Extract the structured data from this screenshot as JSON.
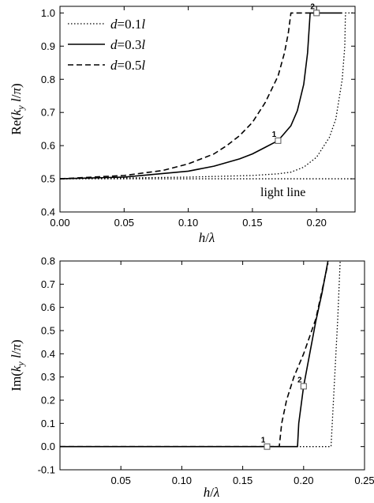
{
  "chart_data": [
    {
      "type": "line",
      "xlabel": "h/λ",
      "ylabel": "Re(k_y l/π)",
      "xlim": [
        0,
        0.23
      ],
      "ylim": [
        0.4,
        1.02
      ],
      "xticks": [
        "0.00",
        "0.05",
        "0.10",
        "0.15",
        "0.20"
      ],
      "yticks": [
        "0.4",
        "0.5",
        "0.6",
        "0.7",
        "0.8",
        "0.9",
        "1.0"
      ],
      "legend_position": "top-left",
      "series": [
        {
          "name": "d=0.1l",
          "style": "dotted",
          "points": [
            [
              0,
              0.5
            ],
            [
              0.1,
              0.505
            ],
            [
              0.15,
              0.51
            ],
            [
              0.17,
              0.515
            ],
            [
              0.18,
              0.52
            ],
            [
              0.19,
              0.535
            ],
            [
              0.2,
              0.565
            ],
            [
              0.21,
              0.625
            ],
            [
              0.215,
              0.68
            ],
            [
              0.22,
              0.8
            ],
            [
              0.222,
              0.9
            ],
            [
              0.2225,
              1.0
            ],
            [
              0.23,
              1.0
            ]
          ]
        },
        {
          "name": "d=0.3l",
          "style": "solid",
          "points": [
            [
              0,
              0.5
            ],
            [
              0.05,
              0.505
            ],
            [
              0.1,
              0.523
            ],
            [
              0.12,
              0.538
            ],
            [
              0.14,
              0.56
            ],
            [
              0.15,
              0.575
            ],
            [
              0.16,
              0.595
            ],
            [
              0.17,
              0.615
            ],
            [
              0.18,
              0.66
            ],
            [
              0.185,
              0.705
            ],
            [
              0.19,
              0.785
            ],
            [
              0.193,
              0.88
            ],
            [
              0.195,
              1.0
            ],
            [
              0.2,
              1.0
            ],
            [
              0.22,
              1.0
            ]
          ]
        },
        {
          "name": "d=0.5l",
          "style": "dashed",
          "points": [
            [
              0,
              0.5
            ],
            [
              0.05,
              0.51
            ],
            [
              0.08,
              0.525
            ],
            [
              0.1,
              0.545
            ],
            [
              0.12,
              0.575
            ],
            [
              0.13,
              0.6
            ],
            [
              0.14,
              0.63
            ],
            [
              0.15,
              0.67
            ],
            [
              0.16,
              0.73
            ],
            [
              0.17,
              0.81
            ],
            [
              0.175,
              0.88
            ],
            [
              0.178,
              0.94
            ],
            [
              0.18,
              1.0
            ],
            [
              0.2,
              1.0
            ]
          ]
        },
        {
          "name": "light line",
          "style": "dotted",
          "points": [
            [
              0,
              0.5
            ],
            [
              0.228,
              0.5
            ]
          ]
        }
      ],
      "markers": [
        {
          "label": "1",
          "x": 0.17,
          "y": 0.615
        },
        {
          "label": "2",
          "x": 0.2,
          "y": 1.0
        }
      ],
      "annotations": [
        "light line"
      ],
      "legend": [
        "d=0.1l",
        "d=0.3l",
        "d=0.5l"
      ]
    },
    {
      "type": "line",
      "xlabel": "h/λ",
      "ylabel": "Im(k_y l/π)",
      "xlim": [
        0,
        0.25
      ],
      "ylim": [
        -0.1,
        0.8
      ],
      "xticks": [
        "0.05",
        "0.10",
        "0.15",
        "0.20",
        "0.25"
      ],
      "yticks": [
        "-0.1",
        "0.0",
        "0.1",
        "0.2",
        "0.3",
        "0.4",
        "0.5",
        "0.6",
        "0.7",
        "0.8"
      ],
      "series": [
        {
          "name": "d=0.1l",
          "style": "dotted",
          "points": [
            [
              0,
              0.0
            ],
            [
              0.2225,
              0.0
            ],
            [
              0.224,
              0.15
            ],
            [
              0.226,
              0.35
            ],
            [
              0.228,
              0.55
            ],
            [
              0.23,
              0.8
            ]
          ]
        },
        {
          "name": "d=0.3l",
          "style": "solid",
          "points": [
            [
              0,
              0.0
            ],
            [
              0.195,
              0.0
            ],
            [
              0.196,
              0.1
            ],
            [
              0.198,
              0.18
            ],
            [
              0.2,
              0.26
            ],
            [
              0.205,
              0.4
            ],
            [
              0.21,
              0.54
            ],
            [
              0.215,
              0.66
            ],
            [
              0.22,
              0.8
            ]
          ]
        },
        {
          "name": "d=0.5l",
          "style": "dashed",
          "points": [
            [
              0,
              0.0
            ],
            [
              0.18,
              0.0
            ],
            [
              0.182,
              0.1
            ],
            [
              0.186,
              0.2
            ],
            [
              0.192,
              0.3
            ],
            [
              0.2,
              0.4
            ],
            [
              0.21,
              0.55
            ],
            [
              0.22,
              0.79
            ]
          ]
        }
      ],
      "markers": [
        {
          "label": "1",
          "x": 0.17,
          "y": 0.0
        },
        {
          "label": "2",
          "x": 0.2,
          "y": 0.26
        }
      ]
    }
  ],
  "text": {
    "legend_d1": [
      "d",
      "=0.1",
      "l"
    ],
    "legend_d3": [
      "d",
      "=0.3",
      "l"
    ],
    "legend_d5": [
      "d",
      "=0.5",
      "l"
    ],
    "light_line": "light line",
    "top_xlabel": [
      "h",
      "/",
      "λ"
    ],
    "bottom_xlabel": [
      "h",
      "/",
      "λ"
    ],
    "top_ylabel": [
      "Re(",
      "k",
      "y",
      " l",
      "/",
      "π",
      ")"
    ],
    "bottom_ylabel": [
      "Im(",
      "k",
      "y",
      " l",
      "/",
      "π",
      ")"
    ]
  }
}
